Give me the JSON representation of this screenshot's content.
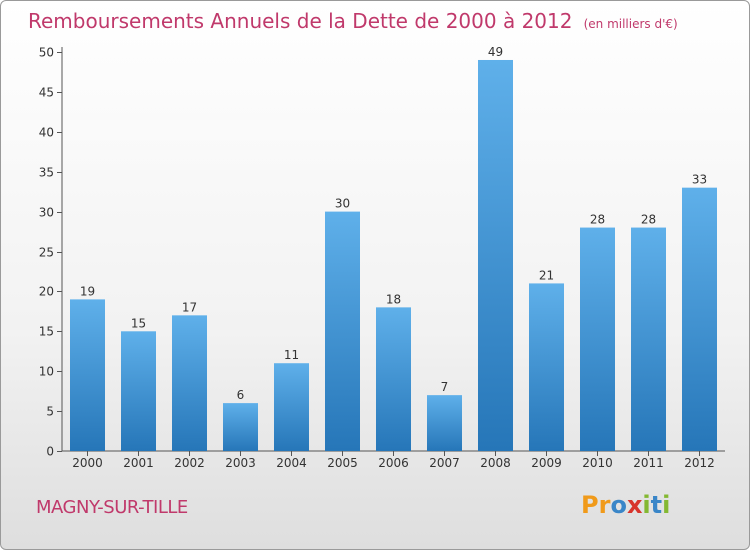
{
  "chart_data": {
    "type": "bar",
    "title": "Remboursements Annuels de la Dette de 2000 à 2012",
    "subtitle": "(en milliers d'€)",
    "categories": [
      "2000",
      "2001",
      "2002",
      "2003",
      "2004",
      "2005",
      "2006",
      "2007",
      "2008",
      "2009",
      "2010",
      "2011",
      "2012"
    ],
    "values": [
      19,
      15,
      17,
      6,
      11,
      30,
      18,
      7,
      49,
      21,
      28,
      28,
      33
    ],
    "ylim": [
      0,
      50
    ],
    "yticks": [
      0,
      5,
      10,
      15,
      20,
      25,
      30,
      35,
      40,
      45,
      50
    ],
    "grid": false,
    "legend": "none",
    "colors": {
      "bar_top": "#5fb0ea",
      "bar_bottom": "#2676b8",
      "title": "#c0396b"
    }
  },
  "location": "MAGNY-SUR-TILLE",
  "logo": {
    "letters": [
      "P",
      "r",
      "o",
      "x",
      "i",
      "t",
      "i"
    ],
    "colors": [
      "#f09a1a",
      "#f09a1a",
      "#3a86c8",
      "#d8342c",
      "#84b832",
      "#3a86c8",
      "#84b832"
    ]
  }
}
